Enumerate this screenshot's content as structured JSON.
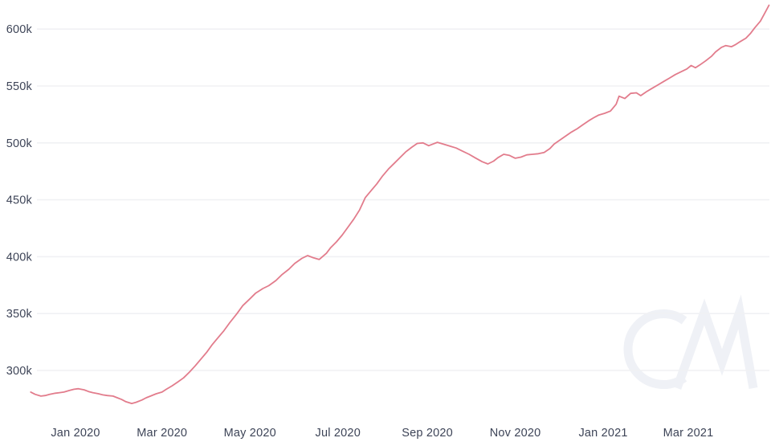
{
  "chart_data": {
    "type": "line",
    "title": "",
    "legend": "none",
    "x_axis": {
      "tick_labels": [
        "Jan 2020",
        "Mar 2020",
        "May 2020",
        "Jul 2020",
        "Sep 2020",
        "Nov 2020",
        "Jan 2021",
        "Mar 2021"
      ],
      "tick_dates": [
        "2020-01-01",
        "2020-03-01",
        "2020-05-01",
        "2020-07-01",
        "2020-09-01",
        "2020-11-01",
        "2021-01-01",
        "2021-03-01"
      ],
      "range": [
        "2019-12-01",
        "2021-04-26"
      ]
    },
    "y_axis": {
      "tick_labels": [
        "300k",
        "350k",
        "400k",
        "450k",
        "500k",
        "550k",
        "600k"
      ],
      "tick_values_k": [
        300,
        350,
        400,
        450,
        500,
        550,
        600
      ],
      "unit": "k",
      "grid": true,
      "ylim_k": [
        265,
        625
      ]
    },
    "series": [
      {
        "name": "metric-value",
        "color": "#e27c8c",
        "points": [
          [
            "2019-12-01",
            281
          ],
          [
            "2019-12-04",
            279
          ],
          [
            "2019-12-08",
            277.5
          ],
          [
            "2019-12-11",
            278
          ],
          [
            "2019-12-14",
            279
          ],
          [
            "2019-12-18",
            280
          ],
          [
            "2019-12-21",
            280.5
          ],
          [
            "2019-12-24",
            281
          ],
          [
            "2019-12-28",
            282.5
          ],
          [
            "2019-12-31",
            283.5
          ],
          [
            "2020-01-03",
            284
          ],
          [
            "2020-01-07",
            283
          ],
          [
            "2020-01-10",
            281.5
          ],
          [
            "2020-01-13",
            280.5
          ],
          [
            "2020-01-17",
            279.5
          ],
          [
            "2020-01-20",
            278.5
          ],
          [
            "2020-01-23",
            278
          ],
          [
            "2020-01-27",
            277.5
          ],
          [
            "2020-01-30",
            276
          ],
          [
            "2020-02-02",
            274.5
          ],
          [
            "2020-02-05",
            272.5
          ],
          [
            "2020-02-09",
            271
          ],
          [
            "2020-02-12",
            272
          ],
          [
            "2020-02-16",
            274
          ],
          [
            "2020-02-19",
            276
          ],
          [
            "2020-02-22",
            277.5
          ],
          [
            "2020-02-26",
            279.5
          ],
          [
            "2020-03-01",
            281
          ],
          [
            "2020-03-04",
            283.5
          ],
          [
            "2020-03-08",
            286.5
          ],
          [
            "2020-03-12",
            290
          ],
          [
            "2020-03-16",
            293.5
          ],
          [
            "2020-03-20",
            298.5
          ],
          [
            "2020-03-24",
            304
          ],
          [
            "2020-03-28",
            310
          ],
          [
            "2020-04-01",
            316
          ],
          [
            "2020-04-05",
            323
          ],
          [
            "2020-04-09",
            329
          ],
          [
            "2020-04-13",
            335
          ],
          [
            "2020-04-17",
            342
          ],
          [
            "2020-04-22",
            350
          ],
          [
            "2020-04-26",
            357
          ],
          [
            "2020-05-01",
            363
          ],
          [
            "2020-05-05",
            368
          ],
          [
            "2020-05-10",
            372
          ],
          [
            "2020-05-14",
            374.5
          ],
          [
            "2020-05-19",
            379
          ],
          [
            "2020-05-23",
            384
          ],
          [
            "2020-05-28",
            389
          ],
          [
            "2020-06-01",
            394
          ],
          [
            "2020-06-06",
            398.5
          ],
          [
            "2020-06-10",
            401
          ],
          [
            "2020-06-14",
            399
          ],
          [
            "2020-06-18",
            397.5
          ],
          [
            "2020-06-23",
            403
          ],
          [
            "2020-06-26",
            408
          ],
          [
            "2020-06-30",
            413
          ],
          [
            "2020-07-04",
            419
          ],
          [
            "2020-07-08",
            426
          ],
          [
            "2020-07-12",
            433
          ],
          [
            "2020-07-16",
            441
          ],
          [
            "2020-07-20",
            452
          ],
          [
            "2020-07-24",
            458
          ],
          [
            "2020-07-28",
            464
          ],
          [
            "2020-08-01",
            471
          ],
          [
            "2020-08-05",
            477
          ],
          [
            "2020-08-09",
            482
          ],
          [
            "2020-08-13",
            487
          ],
          [
            "2020-08-17",
            492
          ],
          [
            "2020-08-21",
            496
          ],
          [
            "2020-08-25",
            499.5
          ],
          [
            "2020-08-29",
            500
          ],
          [
            "2020-09-02",
            497.5
          ],
          [
            "2020-09-05",
            499
          ],
          [
            "2020-09-08",
            500.5
          ],
          [
            "2020-09-12",
            499
          ],
          [
            "2020-09-17",
            497
          ],
          [
            "2020-09-21",
            495.5
          ],
          [
            "2020-09-25",
            493
          ],
          [
            "2020-09-30",
            490
          ],
          [
            "2020-10-04",
            487
          ],
          [
            "2020-10-09",
            483.5
          ],
          [
            "2020-10-13",
            481.5
          ],
          [
            "2020-10-17",
            484
          ],
          [
            "2020-10-20",
            487
          ],
          [
            "2020-10-24",
            490
          ],
          [
            "2020-10-28",
            489
          ],
          [
            "2020-11-01",
            486.5
          ],
          [
            "2020-11-05",
            487.5
          ],
          [
            "2020-11-09",
            489.5
          ],
          [
            "2020-11-13",
            490
          ],
          [
            "2020-11-17",
            490.5
          ],
          [
            "2020-11-21",
            491.5
          ],
          [
            "2020-11-25",
            495
          ],
          [
            "2020-11-28",
            499
          ],
          [
            "2020-12-02",
            502.5
          ],
          [
            "2020-12-06",
            506
          ],
          [
            "2020-12-10",
            509.5
          ],
          [
            "2020-12-14",
            512.5
          ],
          [
            "2020-12-18",
            516
          ],
          [
            "2020-12-22",
            519.5
          ],
          [
            "2020-12-26",
            522.5
          ],
          [
            "2020-12-29",
            524.5
          ],
          [
            "2021-01-02",
            526
          ],
          [
            "2021-01-06",
            528
          ],
          [
            "2021-01-10",
            534
          ],
          [
            "2021-01-12",
            541
          ],
          [
            "2021-01-16",
            539
          ],
          [
            "2021-01-20",
            543.5
          ],
          [
            "2021-01-24",
            544
          ],
          [
            "2021-01-27",
            541.5
          ],
          [
            "2021-01-31",
            545
          ],
          [
            "2021-02-04",
            548
          ],
          [
            "2021-02-08",
            551
          ],
          [
            "2021-02-12",
            554
          ],
          [
            "2021-02-16",
            557
          ],
          [
            "2021-02-20",
            560
          ],
          [
            "2021-02-24",
            562.5
          ],
          [
            "2021-02-28",
            565
          ],
          [
            "2021-03-03",
            568
          ],
          [
            "2021-03-06",
            566
          ],
          [
            "2021-03-09",
            568.5
          ],
          [
            "2021-03-13",
            572
          ],
          [
            "2021-03-17",
            576
          ],
          [
            "2021-03-20",
            580
          ],
          [
            "2021-03-24",
            584
          ],
          [
            "2021-03-27",
            585.5
          ],
          [
            "2021-03-31",
            584.5
          ],
          [
            "2021-04-03",
            586.5
          ],
          [
            "2021-04-06",
            589
          ],
          [
            "2021-04-10",
            592
          ],
          [
            "2021-04-13",
            596
          ],
          [
            "2021-04-16",
            601
          ],
          [
            "2021-04-20",
            607
          ],
          [
            "2021-04-23",
            614
          ],
          [
            "2021-04-26",
            621
          ]
        ]
      }
    ]
  },
  "watermark": {
    "label": "CM"
  },
  "colors": {
    "line": "#e27c8c",
    "grid": "#f0f1f4",
    "label": "#3d4457",
    "background": "#ffffff",
    "watermark": "#eff1f6"
  }
}
